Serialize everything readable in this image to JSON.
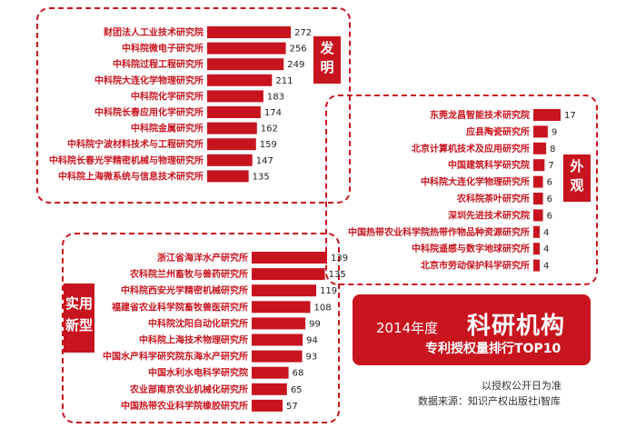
{
  "colors": {
    "accent": "#c8141e",
    "text_dark": "#222222"
  },
  "panels": {
    "invention": {
      "tag": [
        "发",
        "明"
      ]
    },
    "design": {
      "tag": [
        "外",
        "观"
      ]
    },
    "utility": {
      "tag": [
        "实用",
        "新型"
      ]
    }
  },
  "banner": {
    "year_text": "2014年度",
    "main_text": "科研机构",
    "sub_text": "专利授权量排行TOP10"
  },
  "footnotes": {
    "basis": "以授权公开日为准",
    "source": "数据来源：知识产权出版社i智库"
  },
  "chart_data": [
    {
      "type": "bar",
      "orientation": "horizontal",
      "group": "发明",
      "categories": [
        "财团法人工业技术研究院",
        "中科院微电子研究所",
        "中科院过程工程研究所",
        "中科院大连化学物理研究所",
        "中科院化学研究所",
        "中科院长春应用化学研究所",
        "中科院金属研究所",
        "中科院宁波材料技术与工程研究所",
        "中科院长春光学精密机械与物理研究所",
        "中科院上海微系统与信息技术研究所"
      ],
      "values": [
        272,
        256,
        249,
        211,
        183,
        174,
        162,
        159,
        147,
        135
      ]
    },
    {
      "type": "bar",
      "orientation": "horizontal",
      "group": "外观",
      "categories": [
        "东莞龙昌智能技术研究院",
        "应县陶瓷研究所",
        "北京计算机技术及应用研究所",
        "中国建筑科学研究院",
        "中科院大连化学物理研究所",
        "农科院茶叶研究所",
        "深圳先进技术研究院",
        "中国热带农业科学院热带作物品种资源研究所",
        "中科院遥感与数字地球研究所",
        "北京市劳动保护科学研究所"
      ],
      "values": [
        17,
        9,
        8,
        7,
        6,
        6,
        6,
        4,
        4,
        4
      ]
    },
    {
      "type": "bar",
      "orientation": "horizontal",
      "group": "实用新型",
      "categories": [
        "浙江省海洋水产研究所",
        "农科院兰州畜牧与兽药研究所",
        "中科院西安光学精密机械研究所",
        "福建省农业科学院畜牧兽医研究所",
        "中科院沈阳自动化研究所",
        "中科院上海技术物理研究所",
        "中国水产科学研究院东海水产研究所",
        "中国水利水电科学研究院",
        "农业部南京农业机械化研究所",
        "中国热带农业科学院橡胶研究所"
      ],
      "values": [
        139,
        135,
        119,
        108,
        99,
        94,
        93,
        68,
        65,
        57
      ]
    }
  ]
}
